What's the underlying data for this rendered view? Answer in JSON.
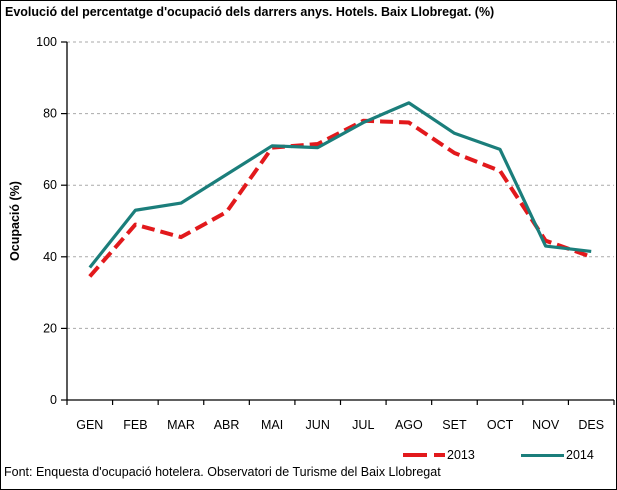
{
  "title": "Evolució del percentatge d'ocupació dels darrers anys. Hotels. Baix Llobregat. (%)",
  "footer": "Font: Enquesta d'ocupació hotelera. Observatori de Turisme del Baix Llobregat",
  "colors": {
    "series_2013": "#e2191c",
    "series_2014": "#1b7e7b",
    "gridline": "#aaaaaa",
    "axis": "#000000",
    "background": "#ffffff"
  },
  "chart_data": {
    "type": "line",
    "title": "Evolució del percentatge d'ocupació dels darrers anys. Hotels. Baix Llobregat. (%)",
    "xlabel": "",
    "ylabel": "Ocupació (%)",
    "categories": [
      "GEN",
      "FEB",
      "MAR",
      "ABR",
      "MAI",
      "JUN",
      "JUL",
      "AGO",
      "SET",
      "OCT",
      "NOV",
      "DES"
    ],
    "series": [
      {
        "name": "2013",
        "color": "#e2191c",
        "style": "dashed",
        "values": [
          34.5,
          49,
          45.5,
          52.5,
          70.5,
          71.5,
          78,
          77.5,
          69,
          64,
          44.5,
          40
        ]
      },
      {
        "name": "2014",
        "color": "#1b7e7b",
        "style": "solid",
        "values": [
          37,
          53,
          55,
          63,
          71,
          70.5,
          77.5,
          83,
          74.5,
          70,
          43,
          41.5
        ]
      }
    ],
    "ylim": [
      0,
      100
    ],
    "yticks": [
      0,
      20,
      40,
      60,
      80,
      100
    ],
    "grid": true,
    "grid_style": "dashed",
    "legend_position": "bottom-right"
  }
}
